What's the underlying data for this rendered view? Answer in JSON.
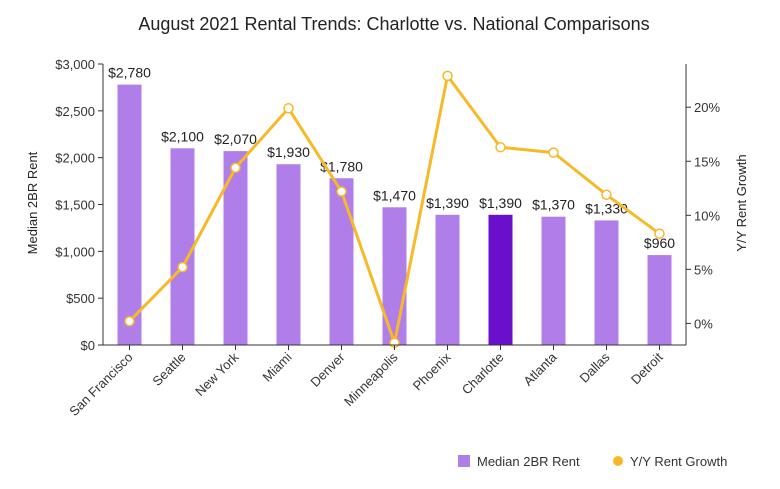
{
  "chart_data": {
    "type": "bar+line",
    "title": "August 2021 Rental Trends: Charlotte vs. National Comparisons",
    "categories": [
      "San Francisco",
      "Seattle",
      "New York",
      "Miami",
      "Denver",
      "Minneapolis",
      "Phoenix",
      "Charlotte",
      "Atlanta",
      "Dallas",
      "Detroit"
    ],
    "highlight_category": "Charlotte",
    "series": [
      {
        "name": "Median 2BR Rent",
        "type": "bar",
        "axis": "left",
        "values": [
          2780,
          2100,
          2070,
          1930,
          1780,
          1470,
          1390,
          1390,
          1370,
          1330,
          960
        ],
        "labels": [
          "$2,780",
          "$2,100",
          "$2,070",
          "$1,930",
          "$1,780",
          "$1,470",
          "$1,390",
          "$1,390",
          "$1,370",
          "$1,330",
          "$960"
        ],
        "color": "#b07ee8",
        "highlight_color": "#6a0fcc"
      },
      {
        "name": "Y/Y Rent Growth",
        "type": "line",
        "axis": "right",
        "values": [
          0.2,
          5.2,
          14.4,
          19.9,
          12.2,
          -1.8,
          22.9,
          16.3,
          15.8,
          11.9,
          8.3
        ],
        "color": "#f7b928"
      }
    ],
    "ylabel": "Median 2BR Rent",
    "y2label": "Y/Y Rent Growth",
    "ylim": [
      0,
      3000
    ],
    "y2lim": [
      -2.0,
      24.0
    ],
    "yticks": [
      0,
      500,
      1000,
      1500,
      2000,
      2500,
      3000
    ],
    "yticklabels": [
      "$0",
      "$500",
      "$1,000",
      "$1,500",
      "$2,000",
      "$2,500",
      "$3,000"
    ],
    "y2ticks": [
      0,
      5,
      10,
      15,
      20
    ],
    "y2ticklabels": [
      "0%",
      "5%",
      "10%",
      "15%",
      "20%"
    ],
    "legend_position": "bottom-right",
    "grid": false
  }
}
